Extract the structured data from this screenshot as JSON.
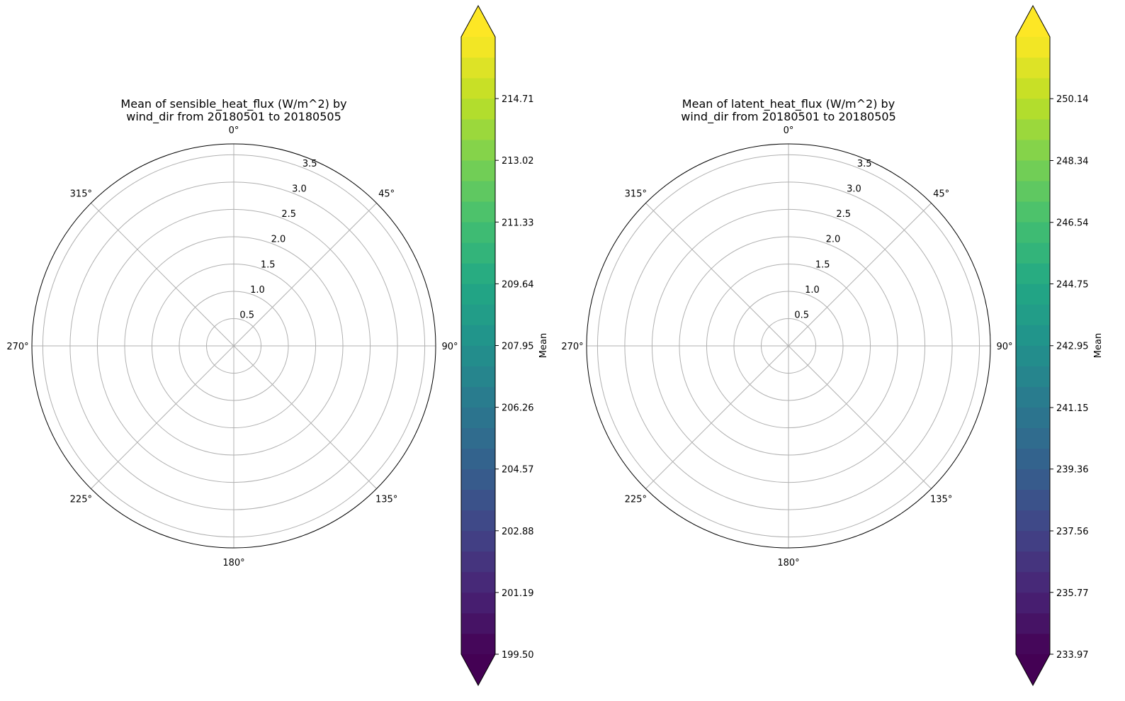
{
  "chart_data": [
    {
      "type": "polar",
      "title_lines": [
        "Mean of sensible_heat_flux (W/m^2) by",
        "wind_dir from 20180501 to 20180505"
      ],
      "theta_ticks": [
        "0°",
        "45°",
        "90°",
        "135°",
        "180°",
        "225°",
        "270°",
        "315°"
      ],
      "theta_tick_degrees": [
        0,
        45,
        90,
        135,
        180,
        225,
        270,
        315
      ],
      "r_ticks": [
        "0.5",
        "1.0",
        "1.5",
        "2.0",
        "2.5",
        "3.0",
        "3.5"
      ],
      "r_tick_values": [
        0.5,
        1.0,
        1.5,
        2.0,
        2.5,
        3.0,
        3.5
      ],
      "rlim": [
        0,
        3.7
      ],
      "grid": true,
      "data": [],
      "colorbar": {
        "label": "Mean",
        "colormap": "viridis",
        "extend": "both",
        "range": [
          199.5,
          216.4
        ],
        "ticks": [
          "199.50",
          "201.19",
          "202.88",
          "204.57",
          "206.26",
          "207.95",
          "209.64",
          "211.33",
          "213.02",
          "214.71"
        ],
        "tick_values": [
          199.5,
          201.19,
          202.88,
          204.57,
          206.26,
          207.95,
          209.64,
          211.33,
          213.02,
          214.71
        ],
        "levels": 30
      }
    },
    {
      "type": "polar",
      "title_lines": [
        "Mean of latent_heat_flux (W/m^2) by",
        "wind_dir from 20180501 to 20180505"
      ],
      "theta_ticks": [
        "0°",
        "45°",
        "90°",
        "135°",
        "180°",
        "225°",
        "270°",
        "315°"
      ],
      "theta_tick_degrees": [
        0,
        45,
        90,
        135,
        180,
        225,
        270,
        315
      ],
      "r_ticks": [
        "0.5",
        "1.0",
        "1.5",
        "2.0",
        "2.5",
        "3.0",
        "3.5"
      ],
      "r_tick_values": [
        0.5,
        1.0,
        1.5,
        2.0,
        2.5,
        3.0,
        3.5
      ],
      "rlim": [
        0,
        3.7
      ],
      "grid": true,
      "data": [],
      "colorbar": {
        "label": "Mean",
        "colormap": "viridis",
        "extend": "both",
        "range": [
          233.97,
          251.94
        ],
        "ticks": [
          "233.97",
          "235.77",
          "237.56",
          "239.36",
          "241.15",
          "242.95",
          "244.75",
          "246.54",
          "248.34",
          "250.14"
        ],
        "tick_values": [
          233.97,
          235.77,
          237.56,
          239.36,
          241.15,
          242.95,
          244.75,
          246.54,
          248.34,
          250.14
        ],
        "levels": 30
      }
    }
  ]
}
